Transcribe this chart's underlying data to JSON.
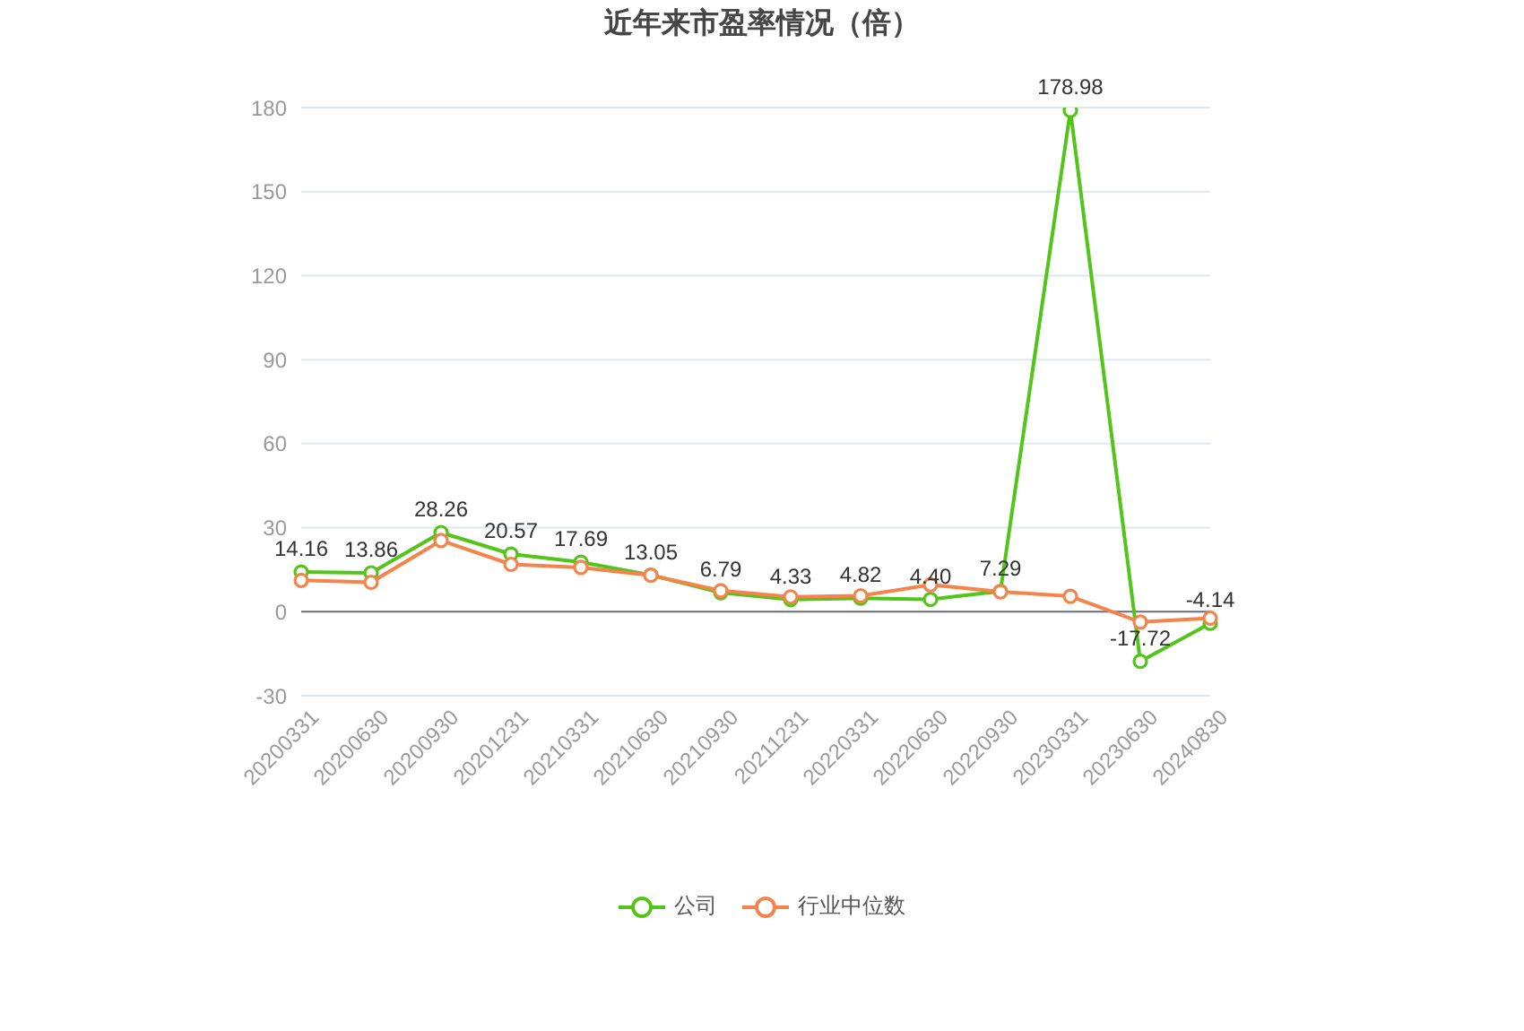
{
  "chart_data": {
    "type": "line",
    "title": "近年来市盈率情况（倍）",
    "categories": [
      "20200331",
      "20200630",
      "20200930",
      "20201231",
      "20210331",
      "20210630",
      "20210930",
      "20211231",
      "20220331",
      "20220630",
      "20220930",
      "20230331",
      "20230630",
      "20240830"
    ],
    "series": [
      {
        "name": "公司",
        "color": "#52c41a",
        "values": [
          14.16,
          13.86,
          28.26,
          20.57,
          17.69,
          13.05,
          6.79,
          4.33,
          4.82,
          4.4,
          7.29,
          178.98,
          -17.72,
          -4.14
        ],
        "value_labels": [
          "14.16",
          "13.86",
          "28.26",
          "20.57",
          "17.69",
          "13.05",
          "6.79",
          "4.33",
          "4.82",
          "4.40",
          "7.29",
          "178.98",
          "-17.72",
          "-4.14"
        ]
      },
      {
        "name": "行业中位数",
        "color": "#f5844c",
        "values": [
          11.2,
          10.5,
          25.4,
          16.9,
          15.8,
          13.0,
          7.5,
          5.3,
          5.7,
          9.6,
          7.1,
          5.5,
          -3.7,
          -2.3
        ]
      }
    ],
    "ylim": [
      -30,
      180
    ],
    "yticks": [
      -30,
      0,
      30,
      60,
      90,
      120,
      150,
      180
    ],
    "grid": "y",
    "legend": "bottom",
    "marker": "circle"
  }
}
